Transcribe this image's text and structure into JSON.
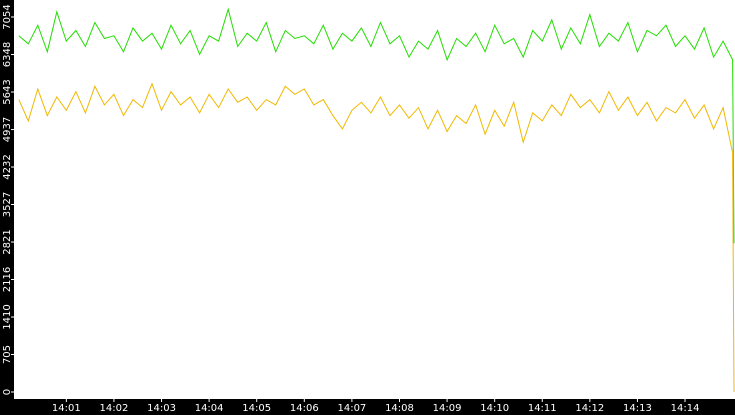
{
  "chart_data": {
    "type": "line",
    "x": [
      0,
      0.2,
      0.4,
      0.6,
      0.8,
      1,
      1.2,
      1.4,
      1.6,
      1.8,
      2,
      2.2,
      2.4,
      2.6,
      2.8,
      3,
      3.2,
      3.4,
      3.6,
      3.8,
      4,
      4.2,
      4.4,
      4.6,
      4.8,
      5,
      5.2,
      5.4,
      5.6,
      5.8,
      6,
      6.2,
      6.4,
      6.6,
      6.8,
      7,
      7.2,
      7.4,
      7.6,
      7.8,
      8,
      8.2,
      8.4,
      8.6,
      8.8,
      9,
      9.2,
      9.4,
      9.6,
      9.8,
      10,
      10.2,
      10.4,
      10.6,
      10.8,
      11,
      11.2,
      11.4,
      11.6,
      11.8,
      12,
      12.2,
      12.4,
      12.6,
      12.8,
      13,
      13.2,
      13.4,
      13.6,
      13.8,
      14,
      14.2,
      14.4,
      14.6,
      14.8,
      15,
      15.03
    ],
    "series": [
      {
        "color": "#22dd00",
        "values": [
          6700,
          6550,
          6900,
          6400,
          7150,
          6600,
          6800,
          6500,
          6950,
          6650,
          6700,
          6400,
          6850,
          6600,
          6750,
          6450,
          6900,
          6550,
          6800,
          6350,
          6700,
          6600,
          7200,
          6500,
          6750,
          6600,
          6950,
          6400,
          6800,
          6650,
          6700,
          6550,
          6900,
          6450,
          6750,
          6600,
          6850,
          6500,
          6950,
          6550,
          6700,
          6300,
          6600,
          6450,
          6800,
          6250,
          6650,
          6500,
          6750,
          6400,
          6900,
          6550,
          6650,
          6300,
          6800,
          6600,
          7000,
          6450,
          6850,
          6550,
          7100,
          6500,
          6750,
          6600,
          6950,
          6400,
          6800,
          6700,
          6900,
          6500,
          6700,
          6450,
          6850,
          6300,
          6600,
          6250,
          2800
        ]
      },
      {
        "color": "#f0b800",
        "values": [
          5500,
          5100,
          5700,
          5200,
          5550,
          5300,
          5650,
          5250,
          5750,
          5400,
          5600,
          5200,
          5500,
          5350,
          5800,
          5300,
          5650,
          5400,
          5550,
          5250,
          5600,
          5350,
          5700,
          5450,
          5550,
          5300,
          5500,
          5400,
          5750,
          5600,
          5700,
          5400,
          5500,
          5200,
          4950,
          5300,
          5450,
          5250,
          5550,
          5200,
          5400,
          5150,
          5350,
          4950,
          5300,
          4900,
          5200,
          5050,
          5400,
          4850,
          5300,
          5000,
          5450,
          4700,
          5250,
          5100,
          5400,
          5200,
          5600,
          5350,
          5500,
          5250,
          5650,
          5300,
          5550,
          5200,
          5450,
          5100,
          5350,
          5250,
          5500,
          5150,
          5400,
          4950,
          5350,
          4500,
          0
        ]
      }
    ],
    "xlim": [
      -0.1,
      15.05
    ],
    "xticks": [
      {
        "value": 1,
        "label": "14:01"
      },
      {
        "value": 2,
        "label": "14:02"
      },
      {
        "value": 3,
        "label": "14:03"
      },
      {
        "value": 4,
        "label": "14:04"
      },
      {
        "value": 5,
        "label": "14:05"
      },
      {
        "value": 6,
        "label": "14:06"
      },
      {
        "value": 7,
        "label": "14:07"
      },
      {
        "value": 8,
        "label": "14:08"
      },
      {
        "value": 9,
        "label": "14:09"
      },
      {
        "value": 10,
        "label": "14:10"
      },
      {
        "value": 11,
        "label": "14:11"
      },
      {
        "value": 12,
        "label": "14:12"
      },
      {
        "value": 13,
        "label": "14:13"
      },
      {
        "value": 14,
        "label": "14:14"
      }
    ],
    "ylim": [
      0,
      7374
    ],
    "yticks": [
      0,
      705,
      1410,
      2116,
      2821,
      3527,
      4232,
      4937,
      5643,
      6348,
      7054
    ]
  }
}
